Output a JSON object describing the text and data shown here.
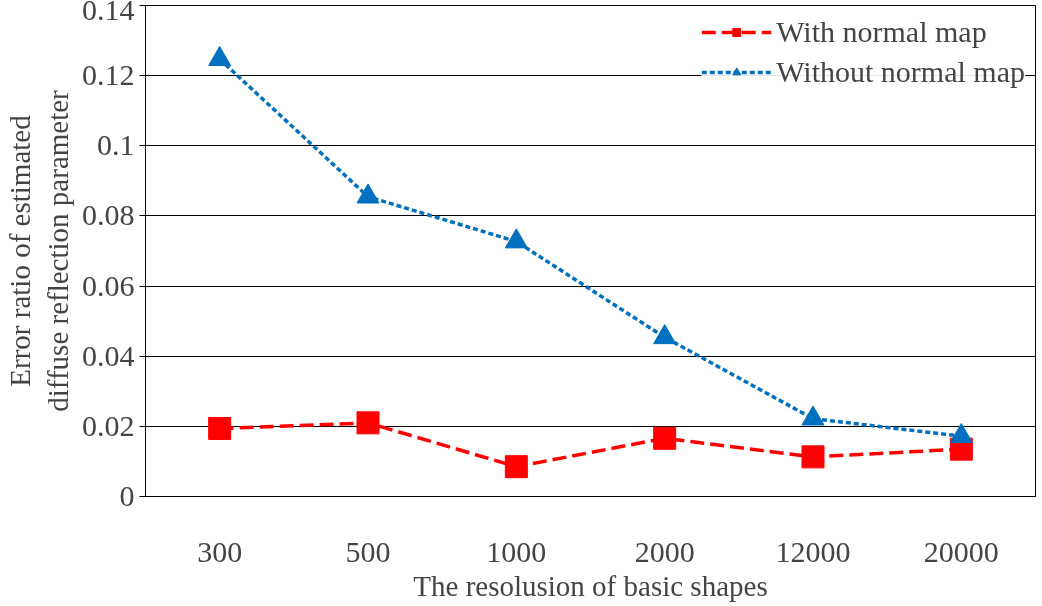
{
  "chart_data": {
    "type": "line",
    "xlabel": "The resolusion of basic shapes",
    "ylabel": "Error ratio of estimated\ndiffuse reflection parameter",
    "categories": [
      "300",
      "500",
      "1000",
      "2000",
      "12000",
      "20000"
    ],
    "series": [
      {
        "name": "With normal map",
        "color": "#ff0000",
        "marker": "square",
        "line_style": "dashed",
        "values": [
          0.0194,
          0.021,
          0.0085,
          0.0166,
          0.0113,
          0.0135
        ]
      },
      {
        "name": "Without normal map",
        "color": "#0070c0",
        "marker": "triangle",
        "line_style": "dotted",
        "values": [
          0.1247,
          0.0855,
          0.0727,
          0.0454,
          0.0222,
          0.0172
        ]
      }
    ],
    "ylim": [
      0,
      0.14
    ],
    "yticks": [
      0,
      0.02,
      0.04,
      0.06,
      0.08,
      0.1,
      0.12,
      0.14
    ],
    "grid": "y",
    "legend": "top right"
  }
}
